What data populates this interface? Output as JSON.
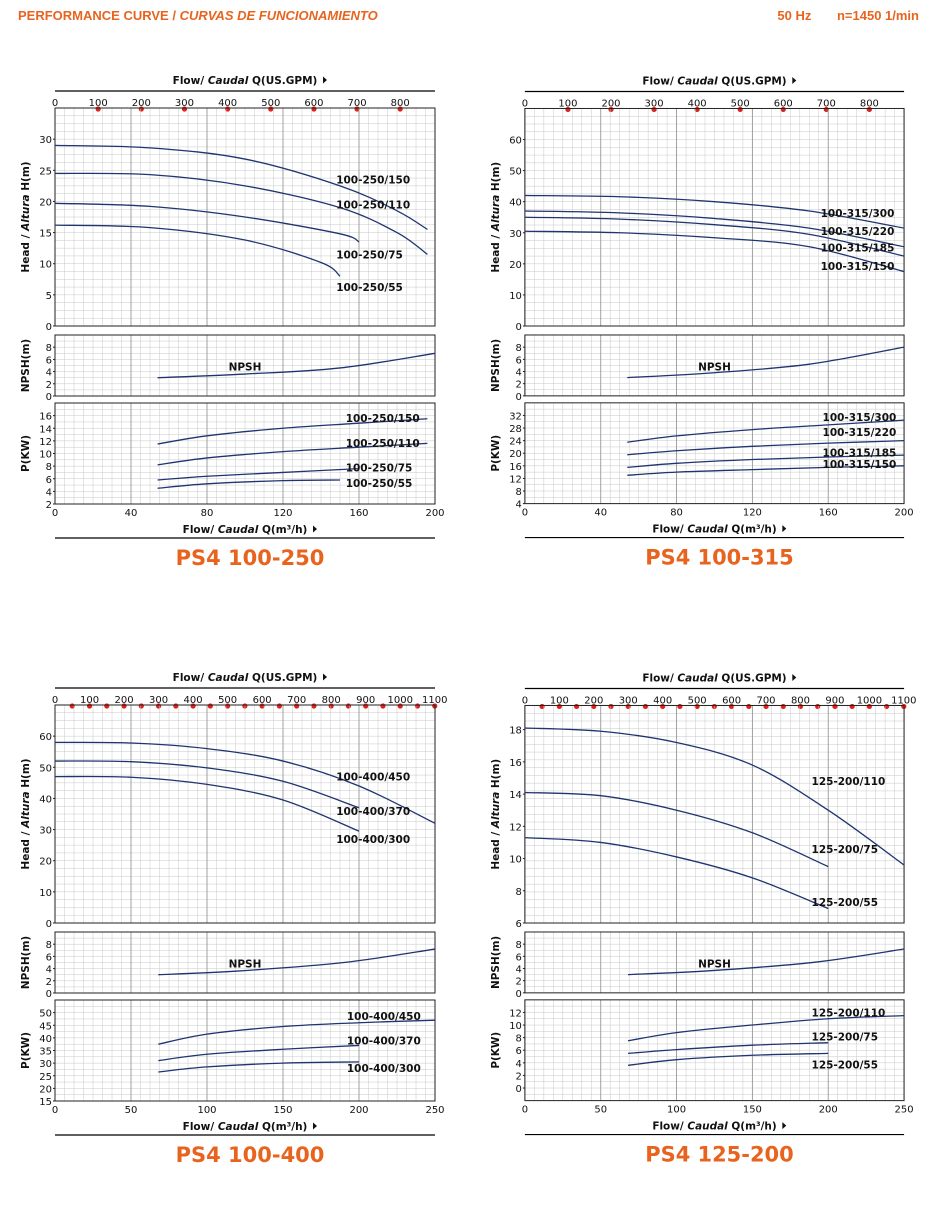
{
  "header": {
    "title_main": "PERFORMANCE CURVE",
    "title_sep": " / ",
    "title_italic": "CURVAS DE FUNCIONAMIENTO",
    "frequency": "50 Hz",
    "speed": "n=1450 1/min"
  },
  "colors": {
    "accent": "#e8641e",
    "curve": "#1f3470",
    "marker": "#e0201c",
    "grid": "#c8c8c8"
  },
  "chart_data": [
    {
      "type": "line",
      "model": "PS4 100-250",
      "x_top_label": {
        "pre": "Flow/ ",
        "ital": "Caudal",
        "post": " Q(US.GPM)"
      },
      "x_bottom_label": {
        "pre": "Flow/ ",
        "ital": "Caudal",
        "post": " Q(m³/h)"
      },
      "x_ticks": [
        0,
        40,
        80,
        120,
        160,
        200
      ],
      "gpm_ticks": [
        0,
        100,
        200,
        300,
        400,
        500,
        600,
        700,
        800
      ],
      "gpm_markers": [
        100,
        200,
        300,
        400,
        500,
        600,
        700,
        800
      ],
      "xlim": [
        0,
        200
      ],
      "head": {
        "ylabel": {
          "pre": "Head / ",
          "ital": "Altura",
          "post": " H(m)"
        },
        "ylim": [
          0,
          35
        ],
        "ticks": [
          0,
          5,
          10,
          15,
          20,
          25,
          30
        ],
        "series": [
          {
            "name": "100-250/150",
            "x": [
              0,
              50,
              100,
              150,
              180,
              196
            ],
            "y": [
              29,
              28.6,
              26.8,
              22.5,
              18.5,
              15.5
            ]
          },
          {
            "name": "100-250/110",
            "x": [
              0,
              50,
              100,
              150,
              180,
              196
            ],
            "y": [
              24.5,
              24.3,
              22.5,
              19,
              15,
              11.5
            ]
          },
          {
            "name": "100-250/75",
            "x": [
              0,
              50,
              100,
              150,
              160
            ],
            "y": [
              19.7,
              19.2,
              17.5,
              14.8,
              13.5
            ]
          },
          {
            "name": "100-250/55",
            "x": [
              0,
              50,
              100,
              140,
              150
            ],
            "y": [
              16.2,
              15.8,
              13.8,
              10.2,
              8
            ]
          }
        ],
        "labels": [
          {
            "text": "100-250/150",
            "x": 148,
            "y": 23.5
          },
          {
            "text": "100-250/110",
            "x": 148,
            "y": 19.5
          },
          {
            "text": "100-250/75",
            "x": 148,
            "y": 11.5
          },
          {
            "text": "100-250/55",
            "x": 148,
            "y": 6.3
          }
        ]
      },
      "npsh": {
        "ylabel": "NPSH(m)",
        "ylim": [
          0,
          10
        ],
        "ticks": [
          0,
          2,
          4,
          6,
          8
        ],
        "label": "NPSH",
        "label_pos": [
          100,
          4.8
        ],
        "x": [
          54,
          100,
          150,
          200
        ],
        "y": [
          3,
          3.6,
          4.6,
          7
        ]
      },
      "power": {
        "ylabel": "P(KW)",
        "ylim": [
          2,
          18
        ],
        "ticks": [
          2,
          4,
          6,
          8,
          10,
          12,
          14,
          16
        ],
        "series": [
          {
            "name": "100-250/150",
            "x": [
              54,
              80,
              120,
              160,
              196
            ],
            "y": [
              11.5,
              12.8,
              14,
              14.8,
              15.5
            ]
          },
          {
            "name": "100-250/110",
            "x": [
              54,
              80,
              120,
              160,
              196
            ],
            "y": [
              8.2,
              9.3,
              10.3,
              11,
              11.6
            ]
          },
          {
            "name": "100-250/75",
            "x": [
              54,
              80,
              120,
              160
            ],
            "y": [
              5.8,
              6.4,
              7,
              7.6
            ]
          },
          {
            "name": "100-250/55",
            "x": [
              54,
              80,
              120,
              150
            ],
            "y": [
              4.5,
              5.2,
              5.7,
              5.8
            ]
          }
        ],
        "labels": [
          {
            "text": "100-250/150",
            "x": 153,
            "y": 15.6
          },
          {
            "text": "100-250/110",
            "x": 153,
            "y": 11.7
          },
          {
            "text": "100-250/75",
            "x": 153,
            "y": 7.8
          },
          {
            "text": "100-250/55",
            "x": 153,
            "y": 5.3
          }
        ]
      }
    },
    {
      "type": "line",
      "model": "PS4 100-315",
      "x_top_label": {
        "pre": "Flow/ ",
        "ital": "Caudal",
        "post": " Q(US.GPM)"
      },
      "x_bottom_label": {
        "pre": "Flow/ ",
        "ital": "Caudal",
        "post": " Q(m³/h)"
      },
      "x_ticks": [
        0,
        40,
        80,
        120,
        160,
        200
      ],
      "gpm_ticks": [
        0,
        100,
        200,
        300,
        400,
        500,
        600,
        700,
        800
      ],
      "gpm_markers": [
        100,
        200,
        300,
        400,
        500,
        600,
        700,
        800
      ],
      "xlim": [
        0,
        200
      ],
      "head": {
        "ylabel": {
          "pre": "Head / ",
          "ital": "Altura",
          "post": " H(m)"
        },
        "ylim": [
          0,
          70
        ],
        "ticks": [
          0,
          10,
          20,
          30,
          40,
          50,
          60
        ],
        "series": [
          {
            "name": "100-315/300",
            "x": [
              0,
              50,
              100,
              150,
              200
            ],
            "y": [
              42,
              41.6,
              40,
              37,
              31.5
            ]
          },
          {
            "name": "100-315/220",
            "x": [
              0,
              50,
              100,
              150,
              200
            ],
            "y": [
              37,
              36.4,
              34.6,
              31.5,
              25.5
            ]
          },
          {
            "name": "100-315/185",
            "x": [
              0,
              50,
              100,
              150,
              200
            ],
            "y": [
              35,
              34.4,
              32.6,
              29.5,
              22.5
            ]
          },
          {
            "name": "100-315/150",
            "x": [
              0,
              50,
              100,
              150,
              200
            ],
            "y": [
              30.5,
              30,
              28.4,
              25.5,
              17.5
            ]
          }
        ],
        "labels": [
          {
            "text": "100-315/300",
            "x": 156,
            "y": 36.4
          },
          {
            "text": "100-315/220",
            "x": 156,
            "y": 30.5
          },
          {
            "text": "100-315/185",
            "x": 156,
            "y": 25.2
          },
          {
            "text": "100-315/150",
            "x": 156,
            "y": 19.3
          }
        ]
      },
      "npsh": {
        "ylabel": "NPSH(m)",
        "ylim": [
          0,
          10
        ],
        "ticks": [
          0,
          2,
          4,
          6,
          8
        ],
        "label": "NPSH",
        "label_pos": [
          100,
          4.8
        ],
        "x": [
          54,
          100,
          150,
          200
        ],
        "y": [
          3,
          3.8,
          5.2,
          8
        ]
      },
      "power": {
        "ylabel": "P(KW)",
        "ylim": [
          4,
          36
        ],
        "ticks": [
          4,
          8,
          12,
          16,
          20,
          24,
          28,
          32
        ],
        "series": [
          {
            "name": "100-315/300",
            "x": [
              54,
              80,
              120,
              160,
              200
            ],
            "y": [
              23.5,
              25.5,
              27.5,
              29,
              30.5
            ]
          },
          {
            "name": "100-315/220",
            "x": [
              54,
              80,
              120,
              160,
              200
            ],
            "y": [
              19.5,
              20.8,
              22.2,
              23.2,
              24
            ]
          },
          {
            "name": "100-315/185",
            "x": [
              54,
              80,
              120,
              160,
              200
            ],
            "y": [
              15.5,
              16.8,
              18,
              18.8,
              19.4
            ]
          },
          {
            "name": "100-315/150",
            "x": [
              54,
              80,
              120,
              160,
              200
            ],
            "y": [
              13,
              14,
              14.8,
              15.5,
              16
            ]
          }
        ],
        "labels": [
          {
            "text": "100-315/300",
            "x": 157,
            "y": 31.5
          },
          {
            "text": "100-315/220",
            "x": 157,
            "y": 26.7
          },
          {
            "text": "100-315/185",
            "x": 157,
            "y": 20.3
          },
          {
            "text": "100-315/150",
            "x": 157,
            "y": 16.6
          }
        ]
      }
    },
    {
      "type": "line",
      "model": "PS4 100-400",
      "x_top_label": {
        "pre": "Flow/ ",
        "ital": "Caudal",
        "post": " Q(US.GPM)"
      },
      "x_bottom_label": {
        "pre": "Flow/ ",
        "ital": "Caudal",
        "post": " Q(m³/h)"
      },
      "x_ticks": [
        0,
        50,
        100,
        150,
        200,
        250
      ],
      "gpm_ticks": [
        0,
        100,
        200,
        300,
        400,
        500,
        600,
        700,
        800,
        900,
        1000,
        1100
      ],
      "gpm_markers": [
        50,
        100,
        150,
        200,
        250,
        300,
        350,
        400,
        450,
        500,
        550,
        600,
        650,
        700,
        750,
        800,
        850,
        900,
        950,
        1000,
        1050,
        1100
      ],
      "xlim": [
        0,
        250
      ],
      "head": {
        "ylabel": {
          "pre": "Head / ",
          "ital": "Altura",
          "post": " H(m)"
        },
        "ylim": [
          0,
          70
        ],
        "ticks": [
          0,
          10,
          20,
          30,
          40,
          50,
          60
        ],
        "series": [
          {
            "name": "100-400/450",
            "x": [
              0,
              50,
              100,
              150,
              200,
              250
            ],
            "y": [
              58,
              57.8,
              56,
              52,
              44,
              32
            ]
          },
          {
            "name": "100-400/370",
            "x": [
              0,
              50,
              100,
              150,
              200
            ],
            "y": [
              52,
              51.8,
              49.8,
              45.5,
              37
            ]
          },
          {
            "name": "100-400/300",
            "x": [
              0,
              50,
              100,
              150,
              200
            ],
            "y": [
              47,
              46.8,
              44.5,
              39.5,
              29.5
            ]
          }
        ],
        "labels": [
          {
            "text": "100-400/450",
            "x": 185,
            "y": 47
          },
          {
            "text": "100-400/370",
            "x": 185,
            "y": 36
          },
          {
            "text": "100-400/300",
            "x": 185,
            "y": 27
          }
        ]
      },
      "npsh": {
        "ylabel": "NPSH(m)",
        "ylim": [
          0,
          10
        ],
        "ticks": [
          0,
          2,
          4,
          6,
          8
        ],
        "label": "NPSH",
        "label_pos": [
          125,
          4.8
        ],
        "x": [
          68,
          120,
          190,
          250
        ],
        "y": [
          3,
          3.6,
          5,
          7.2
        ]
      },
      "power": {
        "ylabel": "P(KW)",
        "ylim": [
          15,
          55
        ],
        "ticks": [
          15,
          20,
          25,
          30,
          35,
          40,
          45,
          50
        ],
        "series": [
          {
            "name": "100-400/450",
            "x": [
              68,
              100,
              150,
              200,
              250
            ],
            "y": [
              37.5,
              41.5,
              44.5,
              46,
              47
            ]
          },
          {
            "name": "100-400/370",
            "x": [
              68,
              100,
              150,
              200
            ],
            "y": [
              31,
              33.5,
              35.5,
              37
            ]
          },
          {
            "name": "100-400/300",
            "x": [
              68,
              100,
              150,
              200
            ],
            "y": [
              26.5,
              28.5,
              30,
              30.5
            ]
          }
        ],
        "labels": [
          {
            "text": "100-400/450",
            "x": 192,
            "y": 48.6
          },
          {
            "text": "100-400/370",
            "x": 192,
            "y": 39
          },
          {
            "text": "100-400/300",
            "x": 192,
            "y": 28
          }
        ]
      }
    },
    {
      "type": "line",
      "model": "PS4 125-200",
      "x_top_label": {
        "pre": "Flow/ ",
        "ital": "Caudal",
        "post": " Q(US.GPM)"
      },
      "x_bottom_label": {
        "pre": "Flow/ ",
        "ital": "Caudal",
        "post": " Q(m³/h)"
      },
      "x_ticks": [
        0,
        50,
        100,
        150,
        200,
        250
      ],
      "gpm_ticks": [
        0,
        100,
        200,
        300,
        400,
        500,
        600,
        700,
        800,
        900,
        1000,
        1100
      ],
      "gpm_markers": [
        50,
        100,
        150,
        200,
        250,
        300,
        350,
        400,
        450,
        500,
        550,
        600,
        650,
        700,
        750,
        800,
        850,
        900,
        950,
        1000,
        1050,
        1100
      ],
      "xlim": [
        0,
        250
      ],
      "head": {
        "ylabel": {
          "pre": "Head / ",
          "ital": "Altura",
          "post": " H(m)"
        },
        "ylim": [
          6,
          19.5
        ],
        "ticks": [
          6,
          8,
          10,
          12,
          14,
          16,
          18
        ],
        "series": [
          {
            "name": "125-200/110",
            "x": [
              0,
              50,
              100,
              150,
              200,
              250
            ],
            "y": [
              18.1,
              17.9,
              17.2,
              15.8,
              13,
              9.6
            ]
          },
          {
            "name": "125-200/75",
            "x": [
              0,
              50,
              100,
              150,
              200
            ],
            "y": [
              14.1,
              13.9,
              13,
              11.6,
              9.5
            ]
          },
          {
            "name": "125-200/55",
            "x": [
              0,
              50,
              100,
              150,
              200
            ],
            "y": [
              11.3,
              11,
              10.1,
              8.8,
              6.9
            ]
          }
        ],
        "labels": [
          {
            "text": "125-200/110",
            "x": 189,
            "y": 14.8
          },
          {
            "text": "125-200/75",
            "x": 189,
            "y": 10.6
          },
          {
            "text": "125-200/55",
            "x": 189,
            "y": 7.3
          }
        ]
      },
      "npsh": {
        "ylabel": "NPSH(m)",
        "ylim": [
          0,
          10
        ],
        "ticks": [
          0,
          2,
          4,
          6,
          8
        ],
        "label": "NPSH",
        "label_pos": [
          125,
          4.8
        ],
        "x": [
          68,
          120,
          190,
          250
        ],
        "y": [
          3,
          3.6,
          5,
          7.2
        ]
      },
      "power": {
        "ylabel": "P(KW)",
        "ylim": [
          -2,
          14
        ],
        "ticks": [
          0,
          2,
          4,
          6,
          8,
          10,
          12
        ],
        "series": [
          {
            "name": "125-200/110",
            "x": [
              68,
              100,
              150,
              200,
              250
            ],
            "y": [
              7.5,
              8.8,
              10,
              11,
              11.5
            ]
          },
          {
            "name": "125-200/75",
            "x": [
              68,
              100,
              150,
              200
            ],
            "y": [
              5.5,
              6.1,
              6.8,
              7.2
            ]
          },
          {
            "name": "125-200/55",
            "x": [
              68,
              100,
              150,
              200
            ],
            "y": [
              3.6,
              4.5,
              5.2,
              5.5
            ]
          }
        ],
        "labels": [
          {
            "text": "125-200/110",
            "x": 189,
            "y": 12
          },
          {
            "text": "125-200/75",
            "x": 189,
            "y": 8.2
          },
          {
            "text": "125-200/55",
            "x": 189,
            "y": 3.7
          }
        ]
      }
    }
  ]
}
